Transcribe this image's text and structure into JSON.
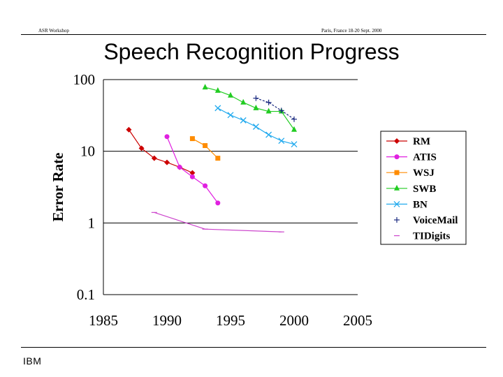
{
  "header": {
    "left": "ASR Workshop",
    "right": "Paris, France 18-20 Sept. 2000"
  },
  "title": "Speech Recognition Progress",
  "footer": {
    "logo": "IBM"
  },
  "chart_data": {
    "type": "line",
    "title": "Speech Recognition Progress",
    "xlabel": "",
    "ylabel": "Error Rate",
    "xlim": [
      1985,
      2005
    ],
    "ylim": [
      0.1,
      100
    ],
    "y_scale": "log",
    "x_ticks": [
      "1985",
      "1990",
      "1995",
      "2000",
      "2005"
    ],
    "y_ticks": [
      "100",
      "10",
      "1",
      "0.1"
    ],
    "grid": "horizontal",
    "legend_position": "right",
    "series": [
      {
        "name": "RM",
        "color": "#cc0000",
        "marker": "diamond",
        "x": [
          1987,
          1988,
          1989,
          1990,
          1991,
          1992
        ],
        "y": [
          20,
          11,
          8,
          7,
          6,
          5
        ]
      },
      {
        "name": "ATIS",
        "color": "#e020e0",
        "marker": "circle",
        "x": [
          1990,
          1991,
          1992,
          1993,
          1994
        ],
        "y": [
          16,
          6,
          4.4,
          3.3,
          1.9
        ]
      },
      {
        "name": "WSJ",
        "color": "#ff8c00",
        "marker": "square",
        "x": [
          1992,
          1993,
          1994
        ],
        "y": [
          15,
          12,
          8
        ]
      },
      {
        "name": "SWB",
        "color": "#22cc22",
        "marker": "triangle",
        "x": [
          1993,
          1994,
          1995,
          1996,
          1997,
          1998,
          1999,
          2000
        ],
        "y": [
          78,
          70,
          60,
          48,
          40,
          36,
          36,
          20
        ]
      },
      {
        "name": "BN",
        "color": "#22aaee",
        "marker": "x",
        "x": [
          1994,
          1995,
          1996,
          1997,
          1998,
          1999,
          2000
        ],
        "y": [
          40,
          32,
          27,
          22,
          17,
          14,
          12.5
        ]
      },
      {
        "name": "VoiceMail",
        "color": "#1a2a80",
        "marker": "plus",
        "x": [
          1997,
          1998,
          1999,
          2000
        ],
        "y": [
          55,
          48,
          37,
          28
        ]
      },
      {
        "name": "TIDigits",
        "color": "#cc44cc",
        "marker": "dash",
        "x": [
          1989,
          1993,
          1999
        ],
        "y": [
          1.4,
          0.82,
          0.75
        ]
      }
    ]
  }
}
